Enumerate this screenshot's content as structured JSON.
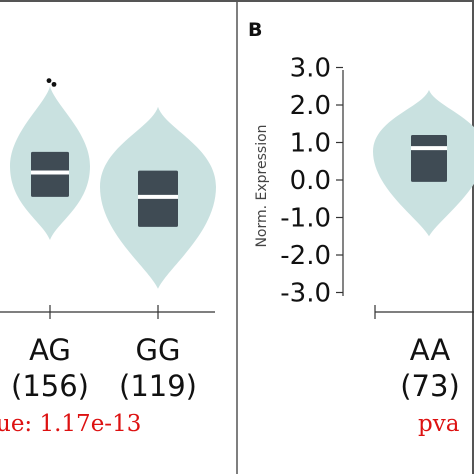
{
  "colors": {
    "violin_fill": "#c9e1e0",
    "box_fill": "#3f4b54",
    "median": "#ffffff",
    "axis": "#333333",
    "text": "#111111",
    "pvalue": "#dd1111",
    "border": "#555555"
  },
  "chart_data": [
    {
      "type": "violin",
      "panel": "A",
      "categories": [
        "AG",
        "GG"
      ],
      "counts": [
        "(156)",
        "(119)"
      ],
      "pvalue_label": "ue: 1.17e-13",
      "groups": [
        {
          "name": "AG",
          "violin_min": -1.6,
          "violin_max": 2.5,
          "q1": -0.45,
          "median": 0.2,
          "q3": 0.75,
          "outliers": [
            2.65,
            2.55
          ]
        },
        {
          "name": "GG",
          "violin_min": -2.9,
          "violin_max": 1.95,
          "q1": -1.25,
          "median": -0.45,
          "q3": 0.25,
          "outliers": []
        }
      ]
    },
    {
      "type": "violin",
      "panel": "B",
      "panel_label": "B",
      "ylabel": "Norm. Expression",
      "ylim": [
        -3.0,
        3.0
      ],
      "yticks": [
        "3.0",
        "2.0",
        "1.0",
        "0.0",
        "-1.0",
        "-2.0",
        "-3.0"
      ],
      "categories": [
        "AA"
      ],
      "counts": [
        "(73)"
      ],
      "pvalue_label": "pva",
      "groups": [
        {
          "name": "AA",
          "violin_min": -1.5,
          "violin_max": 2.4,
          "q1": -0.05,
          "median": 0.85,
          "q3": 1.2,
          "outliers": []
        }
      ]
    }
  ]
}
